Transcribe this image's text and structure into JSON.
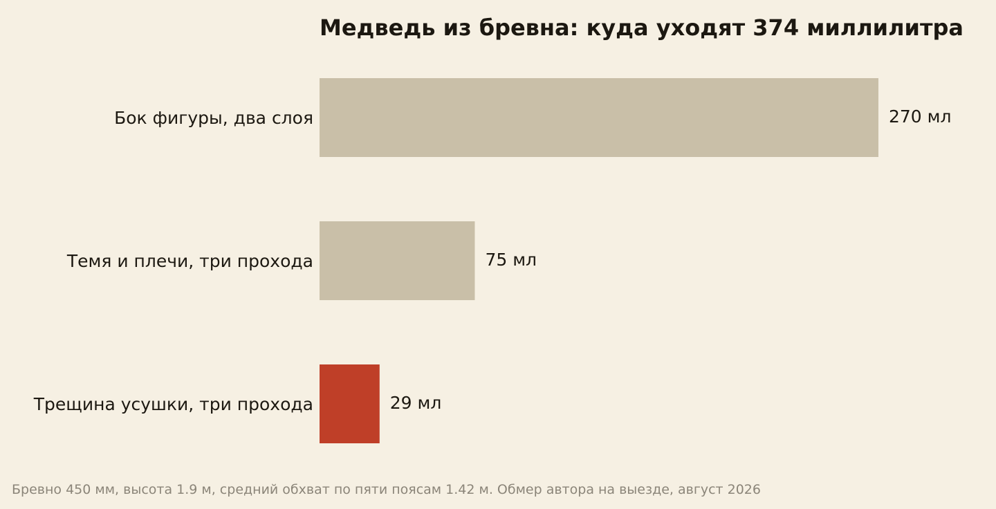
{
  "chart_data": {
    "type": "bar",
    "orientation": "horizontal",
    "title": "Медведь из бревна: куда уходят 374 миллилитра",
    "xlabel": "",
    "ylabel": "",
    "categories": [
      "Бок фигуры, два слоя",
      "Темя и плечи, три прохода",
      "Трещина усушки, три прохода"
    ],
    "values": [
      270,
      75,
      29
    ],
    "value_labels": [
      "270 мл",
      "75 мл",
      "29 мл"
    ],
    "unit": "мл",
    "xlim": [
      0,
      270
    ],
    "grid": false,
    "legend": "none",
    "colors": {
      "bar_default": "#c9bfa8",
      "bar_highlight": "#bf3f28",
      "background": "#f6f0e3",
      "text": "#1c1811",
      "note": "#8b8579"
    },
    "highlight_index": 2
  },
  "footnote": "Бревно 450 мм, высота 1.9 м, средний обхват по пяти поясам 1.42 м. Обмер автора на выезде, август 2026"
}
